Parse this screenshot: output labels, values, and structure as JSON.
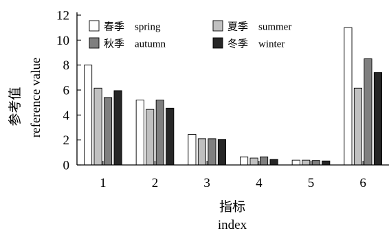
{
  "chart_data": {
    "type": "bar",
    "categories": [
      "1",
      "2",
      "3",
      "4",
      "5",
      "6"
    ],
    "series": [
      {
        "name": "春季　spring",
        "color": "#ffffff",
        "values": [
          8.0,
          5.2,
          2.45,
          0.65,
          0.38,
          11.0
        ]
      },
      {
        "name": "夏季　summer",
        "color": "#c0c0c0",
        "values": [
          6.15,
          4.45,
          2.1,
          0.55,
          0.38,
          6.15
        ]
      },
      {
        "name": "秋季　autumn",
        "color": "#7f7f7f",
        "values": [
          5.4,
          5.2,
          2.1,
          0.65,
          0.35,
          8.5
        ]
      },
      {
        "name": "冬季　winter",
        "color": "#262626",
        "values": [
          5.95,
          4.55,
          2.05,
          0.45,
          0.32,
          7.4
        ]
      }
    ],
    "ylim": [
      0,
      12
    ],
    "yticks": [
      0,
      2,
      4,
      6,
      8,
      10,
      12
    ],
    "ylabel_cn": "参考值",
    "ylabel_en": "reference value",
    "xlabel_cn": "指标",
    "xlabel_en": "index",
    "legend_position": "top-left",
    "grid": false
  }
}
